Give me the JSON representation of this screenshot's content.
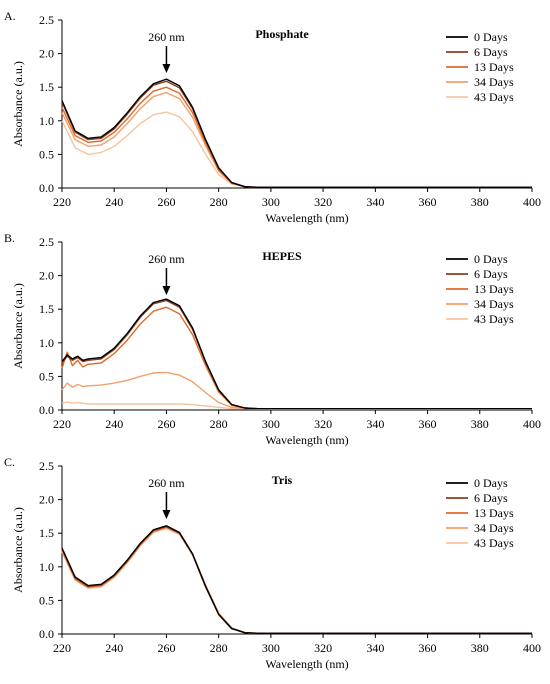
{
  "chart_data": [
    {
      "type": "line",
      "panel_label": "A.",
      "title": "Phosphate",
      "xlabel": "Wavelength (nm)",
      "ylabel": "Absorbance (a.u.)",
      "xlim": [
        220,
        400
      ],
      "ylim": [
        0,
        2.5
      ],
      "xticks": [
        220,
        240,
        260,
        280,
        300,
        320,
        340,
        360,
        380,
        400
      ],
      "yticks": [
        0.0,
        0.5,
        1.0,
        1.5,
        2.0,
        2.5
      ],
      "ytick_labels": [
        "0.0",
        "0.5",
        "1.0",
        "1.5",
        "2.0",
        "2.5"
      ],
      "annotation": {
        "text": "260 nm",
        "x": 260
      },
      "legend_position": "top-right",
      "series": [
        {
          "name": "0 Days",
          "color": "#000000",
          "x": [
            220,
            225,
            230,
            235,
            240,
            245,
            250,
            255,
            260,
            265,
            270,
            275,
            280,
            285,
            290,
            295,
            300,
            310,
            320,
            340,
            360,
            380,
            400
          ],
          "values": [
            1.3,
            0.85,
            0.74,
            0.76,
            0.9,
            1.12,
            1.36,
            1.55,
            1.62,
            1.52,
            1.2,
            0.72,
            0.3,
            0.08,
            0.02,
            0.01,
            0.01,
            0.01,
            0.01,
            0.01,
            0.01,
            0.01,
            0.01
          ]
        },
        {
          "name": "6 Days",
          "color": "#8b3d1e",
          "x": [
            220,
            225,
            230,
            235,
            240,
            245,
            250,
            255,
            260,
            265,
            270,
            275,
            280,
            285,
            290,
            295,
            300,
            310,
            320,
            340,
            360,
            380,
            400
          ],
          "values": [
            1.28,
            0.83,
            0.72,
            0.74,
            0.88,
            1.1,
            1.34,
            1.53,
            1.59,
            1.49,
            1.18,
            0.71,
            0.29,
            0.08,
            0.02,
            0.01,
            0.01,
            0.01,
            0.01,
            0.01,
            0.01,
            0.01,
            0.01
          ]
        },
        {
          "name": "13 Days",
          "color": "#e06a2a",
          "x": [
            220,
            225,
            230,
            235,
            240,
            245,
            250,
            255,
            260,
            265,
            270,
            275,
            280,
            285,
            290,
            295,
            300,
            310,
            320,
            340,
            360,
            380,
            400
          ],
          "values": [
            1.2,
            0.78,
            0.68,
            0.7,
            0.83,
            1.03,
            1.26,
            1.44,
            1.5,
            1.41,
            1.12,
            0.67,
            0.27,
            0.07,
            0.02,
            0.01,
            0.01,
            0.01,
            0.01,
            0.01,
            0.01,
            0.01,
            0.01
          ]
        },
        {
          "name": "34 Days",
          "color": "#f2a06c",
          "x": [
            220,
            225,
            230,
            235,
            240,
            245,
            250,
            255,
            260,
            265,
            270,
            275,
            280,
            285,
            290,
            295,
            300,
            310,
            320,
            340,
            360,
            380,
            400
          ],
          "values": [
            1.12,
            0.72,
            0.62,
            0.64,
            0.76,
            0.96,
            1.18,
            1.36,
            1.42,
            1.33,
            1.05,
            0.63,
            0.25,
            0.07,
            0.02,
            0.01,
            0.01,
            0.01,
            0.01,
            0.01,
            0.01,
            0.01,
            0.01
          ]
        },
        {
          "name": "43 Days",
          "color": "#f7c4a0",
          "x": [
            220,
            225,
            230,
            235,
            240,
            245,
            250,
            255,
            260,
            265,
            270,
            275,
            280,
            285,
            290,
            295,
            300,
            310,
            320,
            340,
            360,
            380,
            400
          ],
          "values": [
            1.0,
            0.6,
            0.5,
            0.53,
            0.62,
            0.78,
            0.96,
            1.09,
            1.13,
            1.06,
            0.84,
            0.5,
            0.2,
            0.06,
            0.02,
            0.01,
            0.01,
            0.01,
            0.01,
            0.01,
            0.01,
            0.01,
            0.01
          ]
        }
      ]
    },
    {
      "type": "line",
      "panel_label": "B.",
      "title": "HEPES",
      "xlabel": "Wavelength (nm)",
      "ylabel": "Absorbance (a.u.)",
      "xlim": [
        220,
        400
      ],
      "ylim": [
        0,
        2.5
      ],
      "xticks": [
        220,
        240,
        260,
        280,
        300,
        320,
        340,
        360,
        380,
        400
      ],
      "yticks": [
        0.0,
        0.5,
        1.0,
        1.5,
        2.0,
        2.5
      ],
      "ytick_labels": [
        "0.0",
        "0.5",
        "1.0",
        "1.5",
        "2.0",
        "2.5"
      ],
      "annotation": {
        "text": "260 nm",
        "x": 260
      },
      "legend_position": "top-right",
      "series": [
        {
          "name": "0 Days",
          "color": "#000000",
          "x": [
            220,
            222,
            224,
            226,
            228,
            230,
            235,
            240,
            245,
            250,
            255,
            260,
            265,
            270,
            275,
            280,
            285,
            290,
            295,
            300,
            320,
            340,
            360,
            380,
            400
          ],
          "values": [
            0.72,
            0.82,
            0.76,
            0.8,
            0.74,
            0.76,
            0.78,
            0.92,
            1.14,
            1.4,
            1.6,
            1.65,
            1.55,
            1.22,
            0.72,
            0.3,
            0.08,
            0.03,
            0.02,
            0.02,
            0.02,
            0.02,
            0.02,
            0.02,
            0.02
          ]
        },
        {
          "name": "6 Days",
          "color": "#8b3d1e",
          "x": [
            220,
            222,
            224,
            226,
            228,
            230,
            235,
            240,
            245,
            250,
            255,
            260,
            265,
            270,
            275,
            280,
            285,
            290,
            295,
            300,
            320,
            340,
            360,
            380,
            400
          ],
          "values": [
            0.7,
            0.8,
            0.74,
            0.78,
            0.72,
            0.74,
            0.76,
            0.9,
            1.12,
            1.38,
            1.58,
            1.63,
            1.53,
            1.2,
            0.71,
            0.29,
            0.08,
            0.03,
            0.02,
            0.02,
            0.02,
            0.02,
            0.02,
            0.02,
            0.02
          ]
        },
        {
          "name": "13 Days",
          "color": "#e06a2a",
          "x": [
            220,
            222,
            224,
            226,
            228,
            230,
            235,
            240,
            245,
            250,
            255,
            260,
            265,
            270,
            275,
            280,
            285,
            290,
            295,
            300,
            320,
            340,
            360,
            380,
            400
          ],
          "values": [
            0.62,
            0.86,
            0.66,
            0.74,
            0.64,
            0.68,
            0.7,
            0.84,
            1.04,
            1.28,
            1.47,
            1.53,
            1.43,
            1.12,
            0.66,
            0.27,
            0.07,
            0.03,
            0.02,
            0.02,
            0.02,
            0.02,
            0.02,
            0.02,
            0.02
          ]
        },
        {
          "name": "34 Days",
          "color": "#f2a06c",
          "x": [
            220,
            222,
            224,
            226,
            228,
            230,
            235,
            240,
            245,
            250,
            255,
            260,
            265,
            270,
            275,
            280,
            285,
            290,
            295,
            300,
            320,
            340,
            360,
            380,
            400
          ],
          "values": [
            0.3,
            0.4,
            0.34,
            0.38,
            0.35,
            0.36,
            0.37,
            0.4,
            0.44,
            0.5,
            0.55,
            0.56,
            0.52,
            0.42,
            0.26,
            0.11,
            0.04,
            0.02,
            0.02,
            0.02,
            0.02,
            0.02,
            0.02,
            0.02,
            0.02
          ]
        },
        {
          "name": "43 Days",
          "color": "#f7c4a0",
          "x": [
            220,
            222,
            224,
            226,
            228,
            230,
            235,
            240,
            245,
            250,
            255,
            260,
            265,
            270,
            275,
            280,
            285,
            290,
            295,
            300,
            320,
            340,
            360,
            380,
            400
          ],
          "values": [
            0.1,
            0.12,
            0.1,
            0.11,
            0.1,
            0.09,
            0.09,
            0.09,
            0.09,
            0.09,
            0.09,
            0.09,
            0.09,
            0.08,
            0.06,
            0.04,
            0.02,
            0.02,
            0.01,
            0.01,
            0.01,
            0.01,
            0.01,
            0.01,
            0.01
          ]
        }
      ]
    },
    {
      "type": "line",
      "panel_label": "C.",
      "title": "Tris",
      "xlabel": "Wavelength (nm)",
      "ylabel": "Absorbance (a.u.)",
      "xlim": [
        220,
        400
      ],
      "ylim": [
        0,
        2.5
      ],
      "xticks": [
        220,
        240,
        260,
        280,
        300,
        320,
        340,
        360,
        380,
        400
      ],
      "yticks": [
        0.0,
        0.5,
        1.0,
        1.5,
        2.0,
        2.5
      ],
      "ytick_labels": [
        "0.0",
        "0.5",
        "1.0",
        "1.5",
        "2.0",
        "2.5"
      ],
      "annotation": {
        "text": "260 nm",
        "x": 260
      },
      "legend_position": "top-right",
      "series": [
        {
          "name": "0 Days",
          "color": "#000000",
          "x": [
            220,
            225,
            230,
            235,
            240,
            245,
            250,
            255,
            260,
            265,
            270,
            275,
            280,
            285,
            290,
            295,
            300,
            310,
            320,
            340,
            360,
            380,
            400
          ],
          "values": [
            1.28,
            0.85,
            0.72,
            0.74,
            0.88,
            1.1,
            1.35,
            1.55,
            1.61,
            1.51,
            1.19,
            0.71,
            0.29,
            0.08,
            0.02,
            0.01,
            0.01,
            0.01,
            0.01,
            0.01,
            0.01,
            0.01,
            0.01
          ]
        },
        {
          "name": "6 Days",
          "color": "#8b3d1e",
          "x": [
            220,
            225,
            230,
            235,
            240,
            245,
            250,
            255,
            260,
            265,
            270,
            275,
            280,
            285,
            290,
            295,
            300,
            310,
            320,
            340,
            360,
            380,
            400
          ],
          "values": [
            1.27,
            0.84,
            0.71,
            0.73,
            0.87,
            1.09,
            1.34,
            1.54,
            1.6,
            1.5,
            1.18,
            0.7,
            0.29,
            0.08,
            0.02,
            0.01,
            0.01,
            0.01,
            0.01,
            0.01,
            0.01,
            0.01,
            0.01
          ]
        },
        {
          "name": "13 Days",
          "color": "#e06a2a",
          "x": [
            220,
            225,
            230,
            235,
            240,
            245,
            250,
            255,
            260,
            265,
            270,
            275,
            280,
            285,
            290,
            295,
            300,
            310,
            320,
            340,
            360,
            380,
            400
          ],
          "values": [
            1.25,
            0.82,
            0.7,
            0.72,
            0.86,
            1.08,
            1.33,
            1.53,
            1.59,
            1.5,
            1.19,
            0.72,
            0.3,
            0.09,
            0.02,
            0.01,
            0.01,
            0.01,
            0.01,
            0.01,
            0.01,
            0.01,
            0.01
          ]
        },
        {
          "name": "34 Days",
          "color": "#f2a06c",
          "x": [
            220,
            225,
            230,
            235,
            240,
            245,
            250,
            255,
            260,
            265,
            270,
            275,
            280,
            285,
            290,
            295,
            300,
            310,
            320,
            340,
            360,
            380,
            400
          ],
          "values": [
            1.24,
            0.81,
            0.69,
            0.71,
            0.85,
            1.07,
            1.32,
            1.52,
            1.58,
            1.49,
            1.19,
            0.72,
            0.31,
            0.09,
            0.02,
            0.01,
            0.01,
            0.01,
            0.01,
            0.01,
            0.01,
            0.01,
            0.01
          ]
        },
        {
          "name": "43 Days",
          "color": "#f7c4a0",
          "x": [
            220,
            225,
            230,
            235,
            240,
            245,
            250,
            255,
            260,
            265,
            270,
            275,
            280,
            285,
            290,
            295,
            300,
            310,
            320,
            340,
            360,
            380,
            400
          ],
          "values": [
            1.22,
            0.8,
            0.68,
            0.7,
            0.84,
            1.06,
            1.31,
            1.51,
            1.57,
            1.48,
            1.18,
            0.72,
            0.31,
            0.09,
            0.02,
            0.01,
            0.01,
            0.01,
            0.01,
            0.01,
            0.01,
            0.01,
            0.01
          ]
        }
      ]
    }
  ]
}
